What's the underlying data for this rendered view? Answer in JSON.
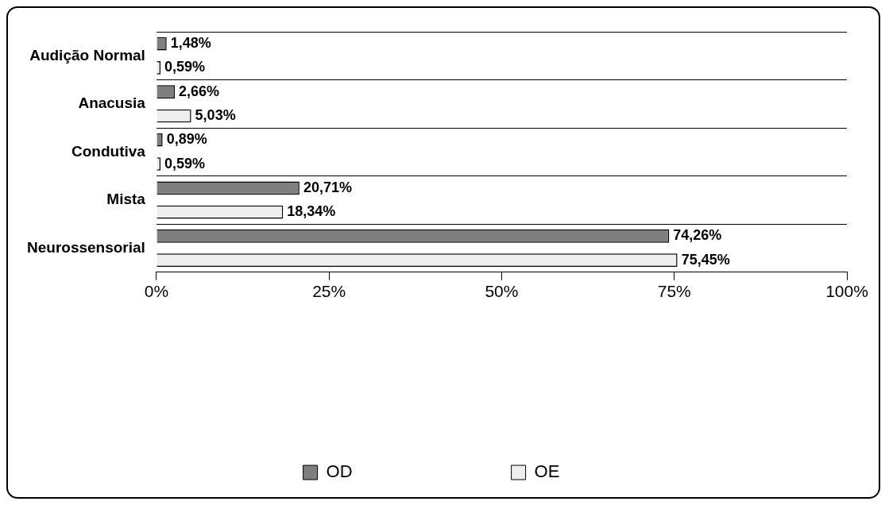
{
  "chart_data": {
    "type": "bar",
    "orientation": "horizontal",
    "categories": [
      "Audição Normal",
      "Anacusia",
      "Condutiva",
      "Mista",
      "Neurossensorial"
    ],
    "series": [
      {
        "name": "OD",
        "color": "#7f7f7f",
        "values": [
          1.48,
          2.66,
          0.89,
          20.71,
          74.26
        ],
        "value_labels": [
          "1,48%",
          "2,66%",
          "0,89%",
          "20,71%",
          "74,26%"
        ]
      },
      {
        "name": "OE",
        "color": "#eeeeee",
        "values": [
          0.59,
          5.03,
          0.59,
          18.34,
          75.45
        ],
        "value_labels": [
          "0,59%",
          "5,03%",
          "0,59%",
          "18,34%",
          "75,45%"
        ]
      }
    ],
    "xlim": [
      0,
      100
    ],
    "xticks": [
      {
        "value": 0,
        "label": "0%"
      },
      {
        "value": 25,
        "label": "25%"
      },
      {
        "value": 50,
        "label": "50%"
      },
      {
        "value": 75,
        "label": "75%"
      },
      {
        "value": 100,
        "label": "100%"
      }
    ],
    "grid": "y",
    "legend": "bottom"
  }
}
